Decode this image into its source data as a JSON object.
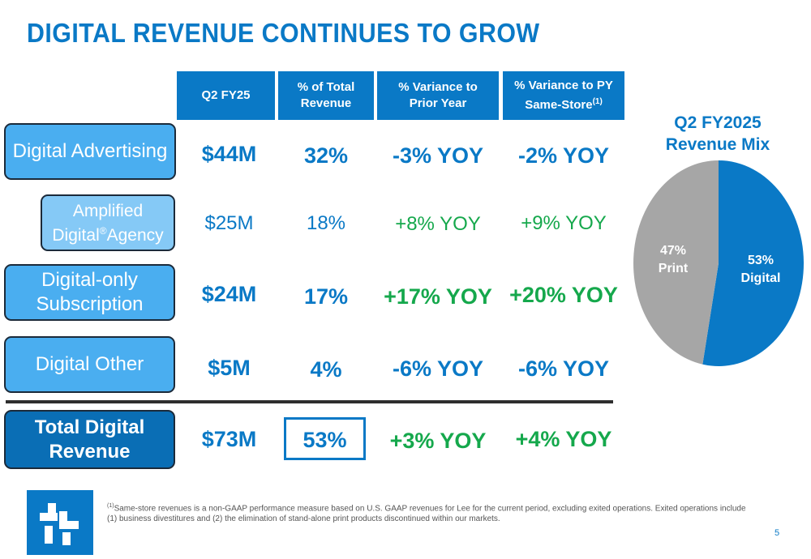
{
  "title": "DIGITAL REVENUE CONTINUES TO GROW",
  "headers": {
    "q2": "Q2 FY25",
    "pct_total_1": "% of Total",
    "pct_total_2": "Revenue",
    "var_py_1": "% Variance to",
    "var_py_2": "Prior Year",
    "var_ss_1": "% Variance to PY",
    "var_ss_2": "Same-Store",
    "var_ss_sup": "(1)"
  },
  "rows": [
    {
      "label": "Digital Advertising",
      "revenue": "$44M",
      "pct": "32%",
      "var_py": "-3% YOY",
      "var_ss": "-2% YOY"
    },
    {
      "label_1": "Amplified",
      "label_2": "Digital",
      "label_reg": "®",
      "label_3": "Agency",
      "revenue": "$25M",
      "pct": "18%",
      "var_py": "+8% YOY",
      "var_ss": "+9% YOY"
    },
    {
      "label_1": "Digital-only",
      "label_2": "Subscription",
      "revenue": "$24M",
      "pct": "17%",
      "var_py": "+17% YOY",
      "var_ss": "+20% YOY"
    },
    {
      "label": "Digital Other",
      "revenue": "$5M",
      "pct": "4%",
      "var_py": "-6% YOY",
      "var_ss": "-6% YOY"
    },
    {
      "label_1": "Total Digital",
      "label_2": "Revenue",
      "revenue": "$73M",
      "pct": "53%",
      "var_py": "+3% YOY",
      "var_ss": "+4% YOY"
    }
  ],
  "pie": {
    "title_1": "Q2 FY2025",
    "title_2": "Revenue Mix",
    "digital_pct": "53%",
    "digital_label": "Digital",
    "print_pct": "47%",
    "print_label": "Print",
    "digital_color": "#0a79c6",
    "print_color": "#a6a6a6"
  },
  "chart_data": {
    "type": "pie",
    "title": "Q2 FY2025 Revenue Mix",
    "categories": [
      "Digital",
      "Print"
    ],
    "values": [
      53,
      47
    ]
  },
  "footnote": {
    "sup": "(1)",
    "text": "Same-store revenues is a non-GAAP performance measure based on U.S. GAAP revenues for Lee for the current period, excluding exited operations. Exited operations include (1) business divestitures and (2) the elimination of stand-alone print products discontinued within our markets."
  },
  "page_number": "5",
  "colors": {
    "brand_blue": "#0a79c6",
    "green": "#15a84c",
    "label_light": "#4aaef0",
    "label_lighter": "#85c9f6",
    "label_dark": "#0a6eb5"
  }
}
